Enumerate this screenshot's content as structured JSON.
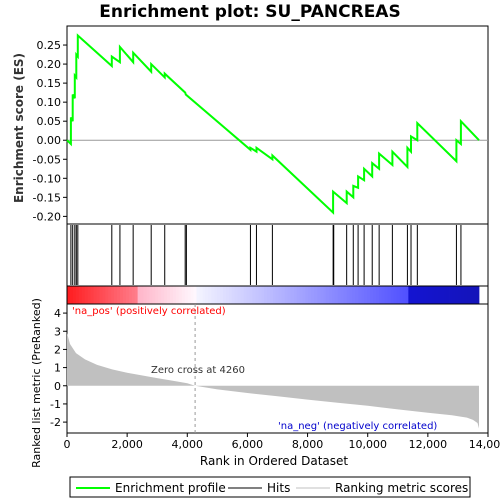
{
  "chart_data": {
    "type": "line",
    "title": "Enrichment plot: SU_PANCREAS",
    "es_panel": {
      "ylabel": "Enrichment score (ES)",
      "ylim": [
        -0.22,
        0.3
      ],
      "yticks": [
        0.25,
        0.2,
        0.15,
        0.1,
        0.05,
        0.0,
        -0.05,
        -0.1,
        -0.15,
        -0.2
      ],
      "ytick_labels": [
        "0.25",
        "0.20",
        "0.15",
        "0.10",
        "0.05",
        "0.00",
        "-0.05",
        "-0.10",
        "-0.15",
        "-0.20"
      ],
      "series": [
        {
          "name": "Enrichment profile",
          "color": "#00ff00",
          "x": [
            0,
            130,
            130,
            190,
            190,
            260,
            260,
            310,
            310,
            360,
            360,
            1490,
            1490,
            1760,
            1760,
            2200,
            2200,
            2800,
            2800,
            3250,
            3250,
            3930,
            3950,
            6100,
            6100,
            6300,
            6300,
            6830,
            6830,
            8850,
            8850,
            9300,
            9300,
            9520,
            9520,
            9680,
            9680,
            9880,
            9880,
            10150,
            10150,
            10380,
            10380,
            10820,
            10820,
            11320,
            11320,
            11440,
            11440,
            11650,
            11650,
            12950,
            12950,
            13100,
            13100,
            13700
          ],
          "y": [
            0.0,
            -0.01,
            0.06,
            0.05,
            0.12,
            0.11,
            0.17,
            0.165,
            0.225,
            0.22,
            0.275,
            0.195,
            0.22,
            0.205,
            0.245,
            0.205,
            0.23,
            0.18,
            0.2,
            0.165,
            0.175,
            0.125,
            0.12,
            -0.025,
            -0.02,
            -0.03,
            -0.02,
            -0.05,
            -0.04,
            -0.19,
            -0.135,
            -0.165,
            -0.135,
            -0.15,
            -0.12,
            -0.125,
            -0.095,
            -0.105,
            -0.075,
            -0.095,
            -0.06,
            -0.075,
            -0.035,
            -0.065,
            -0.03,
            -0.07,
            -0.02,
            -0.03,
            0.01,
            0.0,
            0.045,
            -0.055,
            0.0,
            -0.01,
            0.05,
            0.0
          ]
        }
      ]
    },
    "hits": {
      "name": "Hits",
      "positions": [
        130,
        190,
        260,
        310,
        360,
        1490,
        1760,
        2200,
        2800,
        3250,
        3930,
        3970,
        6100,
        6300,
        6830,
        8850,
        8870,
        9300,
        9520,
        9680,
        9880,
        10150,
        10380,
        10820,
        11320,
        11440,
        11650,
        12950,
        13100
      ]
    },
    "rank_panel": {
      "name": "Ranking metric scores",
      "ylabel": "Ranked list metric (PreRanked)",
      "xlabel": "Rank in Ordered Dataset",
      "ylim": [
        -2.6,
        4.5
      ],
      "yticks": [
        4,
        3,
        2,
        1,
        0,
        -1,
        -2
      ],
      "ytick_labels": [
        "4",
        "3",
        "2",
        "1",
        "0",
        "-1",
        "-2"
      ],
      "xlim": [
        0,
        14000
      ],
      "xticks": [
        0,
        2000,
        4000,
        6000,
        8000,
        10000,
        12000,
        14000
      ],
      "xtick_labels": [
        "0",
        "2,000",
        "4,000",
        "6,000",
        "8,000",
        "10,000",
        "12,000",
        "14,000"
      ],
      "n_genes": 13700,
      "metric_x": [
        0,
        100,
        300,
        600,
        1000,
        1500,
        2000,
        3000,
        4000,
        4260,
        5000,
        6000,
        7000,
        8000,
        9000,
        10000,
        11000,
        12000,
        12800,
        13300,
        13500,
        13650,
        13700
      ],
      "metric_y": [
        2.9,
        2.3,
        1.8,
        1.45,
        1.15,
        0.9,
        0.72,
        0.42,
        0.14,
        0.0,
        -0.2,
        -0.4,
        -0.58,
        -0.76,
        -0.93,
        -1.1,
        -1.3,
        -1.48,
        -1.62,
        -1.75,
        -1.88,
        -2.05,
        -2.35
      ],
      "zero_cross_label": "Zero cross at 4260",
      "zero_cross": 4260,
      "pos_label": "'na_pos' (positively correlated)",
      "neg_label": "'na_neg' (negatively correlated)"
    },
    "legend": [
      {
        "label": "Enrichment profile",
        "color": "#00ff00",
        "kind": "line"
      },
      {
        "label": "Hits",
        "color": "#000000",
        "kind": "line"
      },
      {
        "label": "Ranking metric scores",
        "color": "#c0c0c0",
        "kind": "line"
      }
    ],
    "colors": {
      "profile": "#00ff00",
      "pos_label": "#ff0000",
      "neg_label": "#0000cc",
      "metric_fill": "#c0c0c0"
    }
  }
}
